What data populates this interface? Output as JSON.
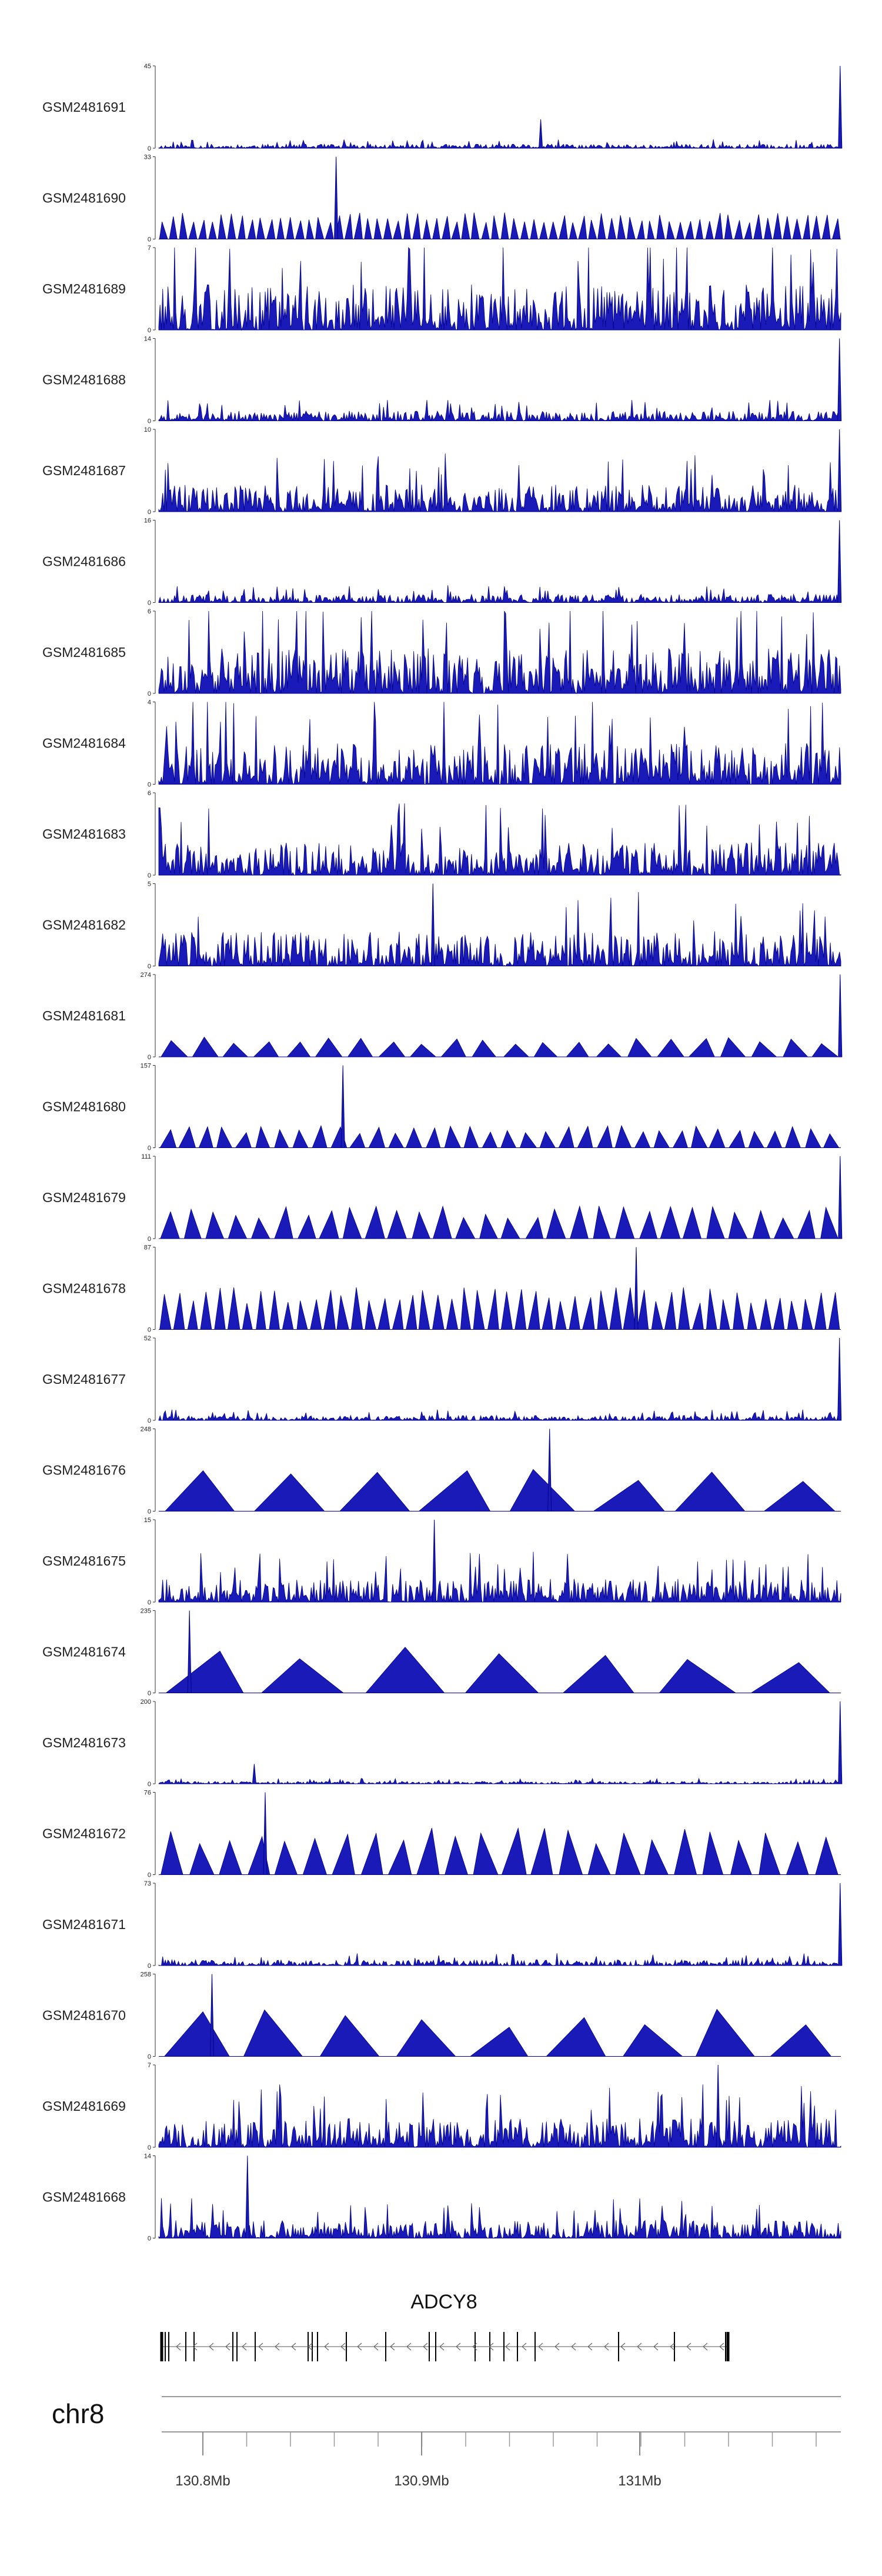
{
  "chart_data": {
    "type": "area",
    "chromosome": "chr8",
    "gene": "ADCY8",
    "x_ticks": [
      "130.8Mb",
      "130.9Mb",
      "131Mb"
    ],
    "fill_color": "#1a1ab8",
    "line_color": "#00008b",
    "tracks": [
      {
        "name": "GSM2481691",
        "ymax": "45",
        "ymin": "0",
        "style": "dense",
        "seed": 11,
        "base": 0.05,
        "spikes": [
          [
            0.56,
            0.35
          ],
          [
            0.999,
            1.0
          ]
        ]
      },
      {
        "name": "GSM2481690",
        "ymax": "33",
        "ymin": "0",
        "style": "tri",
        "seed": 12,
        "n": 70,
        "base": 0.28,
        "spikes": [
          [
            0.26,
            1.0
          ]
        ]
      },
      {
        "name": "GSM2481689",
        "ymax": "7",
        "ymin": "0",
        "style": "dense",
        "seed": 13,
        "base": 0.55
      },
      {
        "name": "GSM2481688",
        "ymax": "14",
        "ymin": "0",
        "style": "dense",
        "seed": 14,
        "base": 0.12,
        "spikes": [
          [
            0.998,
            1.0
          ]
        ]
      },
      {
        "name": "GSM2481687",
        "ymax": "10",
        "ymin": "0",
        "style": "dense",
        "seed": 15,
        "base": 0.33,
        "spikes": [
          [
            0.998,
            1.0
          ]
        ]
      },
      {
        "name": "GSM2481686",
        "ymax": "16",
        "ymin": "0",
        "style": "dense",
        "seed": 16,
        "base": 0.1,
        "spikes": [
          [
            0.998,
            1.0
          ]
        ]
      },
      {
        "name": "GSM2481685",
        "ymax": "6",
        "ymin": "0",
        "style": "dense",
        "seed": 17,
        "base": 0.55
      },
      {
        "name": "GSM2481684",
        "ymax": "4",
        "ymin": "0",
        "style": "dense",
        "seed": 18,
        "base": 0.5
      },
      {
        "name": "GSM2481683",
        "ymax": "6",
        "ymin": "0",
        "style": "dense",
        "seed": 19,
        "base": 0.4
      },
      {
        "name": "GSM2481682",
        "ymax": "5",
        "ymin": "0",
        "style": "dense",
        "seed": 20,
        "base": 0.42,
        "spikes": [
          [
            0.402,
            1.0
          ]
        ]
      },
      {
        "name": "GSM2481681",
        "ymax": "274",
        "ymin": "0",
        "style": "tri",
        "seed": 21,
        "n": 22,
        "base": 0.22,
        "spikes": [
          [
            0.999,
            1.0
          ]
        ]
      },
      {
        "name": "GSM2481680",
        "ymax": "157",
        "ymin": "0",
        "style": "tri",
        "seed": 22,
        "n": 36,
        "base": 0.24,
        "spikes": [
          [
            0.27,
            1.0
          ]
        ]
      },
      {
        "name": "GSM2481679",
        "ymax": "111",
        "ymin": "0",
        "style": "tri",
        "seed": 23,
        "n": 30,
        "base": 0.35,
        "spikes": [
          [
            0.999,
            1.0
          ]
        ]
      },
      {
        "name": "GSM2481678",
        "ymax": "87",
        "ymin": "0",
        "style": "tri",
        "seed": 24,
        "n": 50,
        "base": 0.45,
        "spikes": [
          [
            0.7,
            1.0
          ]
        ]
      },
      {
        "name": "GSM2481677",
        "ymax": "52",
        "ymin": "0",
        "style": "dense",
        "seed": 25,
        "base": 0.06,
        "spikes": [
          [
            0.998,
            1.0
          ]
        ]
      },
      {
        "name": "GSM2481676",
        "ymax": "248",
        "ymin": "0",
        "style": "tri",
        "seed": 26,
        "n": 8,
        "base": 0.5,
        "spikes": [
          [
            0.573,
            1.0
          ]
        ]
      },
      {
        "name": "GSM2481675",
        "ymax": "15",
        "ymin": "0",
        "style": "dense",
        "seed": 27,
        "base": 0.28,
        "spikes": [
          [
            0.404,
            1.0
          ]
        ]
      },
      {
        "name": "GSM2481674",
        "ymax": "235",
        "ymin": "0",
        "style": "tri",
        "seed": 28,
        "n": 7,
        "base": 0.5,
        "spikes": [
          [
            0.045,
            1.0
          ]
        ]
      },
      {
        "name": "GSM2481673",
        "ymax": "200",
        "ymin": "0",
        "style": "dense",
        "seed": 29,
        "base": 0.03,
        "spikes": [
          [
            0.14,
            0.24
          ],
          [
            0.999,
            1.0
          ]
        ]
      },
      {
        "name": "GSM2481672",
        "ymax": "76",
        "ymin": "0",
        "style": "tri",
        "seed": 30,
        "n": 24,
        "base": 0.5,
        "spikes": [
          [
            0.156,
            1.0
          ]
        ]
      },
      {
        "name": "GSM2481671",
        "ymax": "73",
        "ymin": "0",
        "style": "dense",
        "seed": 31,
        "base": 0.07,
        "spikes": [
          [
            0.999,
            1.0
          ]
        ]
      },
      {
        "name": "GSM2481670",
        "ymax": "258",
        "ymin": "0",
        "style": "tri",
        "seed": 32,
        "n": 9,
        "base": 0.5,
        "spikes": [
          [
            0.078,
            1.0
          ]
        ]
      },
      {
        "name": "GSM2481669",
        "ymax": "7",
        "ymin": "0",
        "style": "dense",
        "seed": 33,
        "base": 0.35,
        "spikes": [
          [
            0.82,
            1.0
          ]
        ]
      },
      {
        "name": "GSM2481668",
        "ymax": "14",
        "ymin": "0",
        "style": "dense",
        "seed": 34,
        "base": 0.22,
        "spikes": [
          [
            0.13,
            1.0
          ]
        ]
      }
    ]
  }
}
